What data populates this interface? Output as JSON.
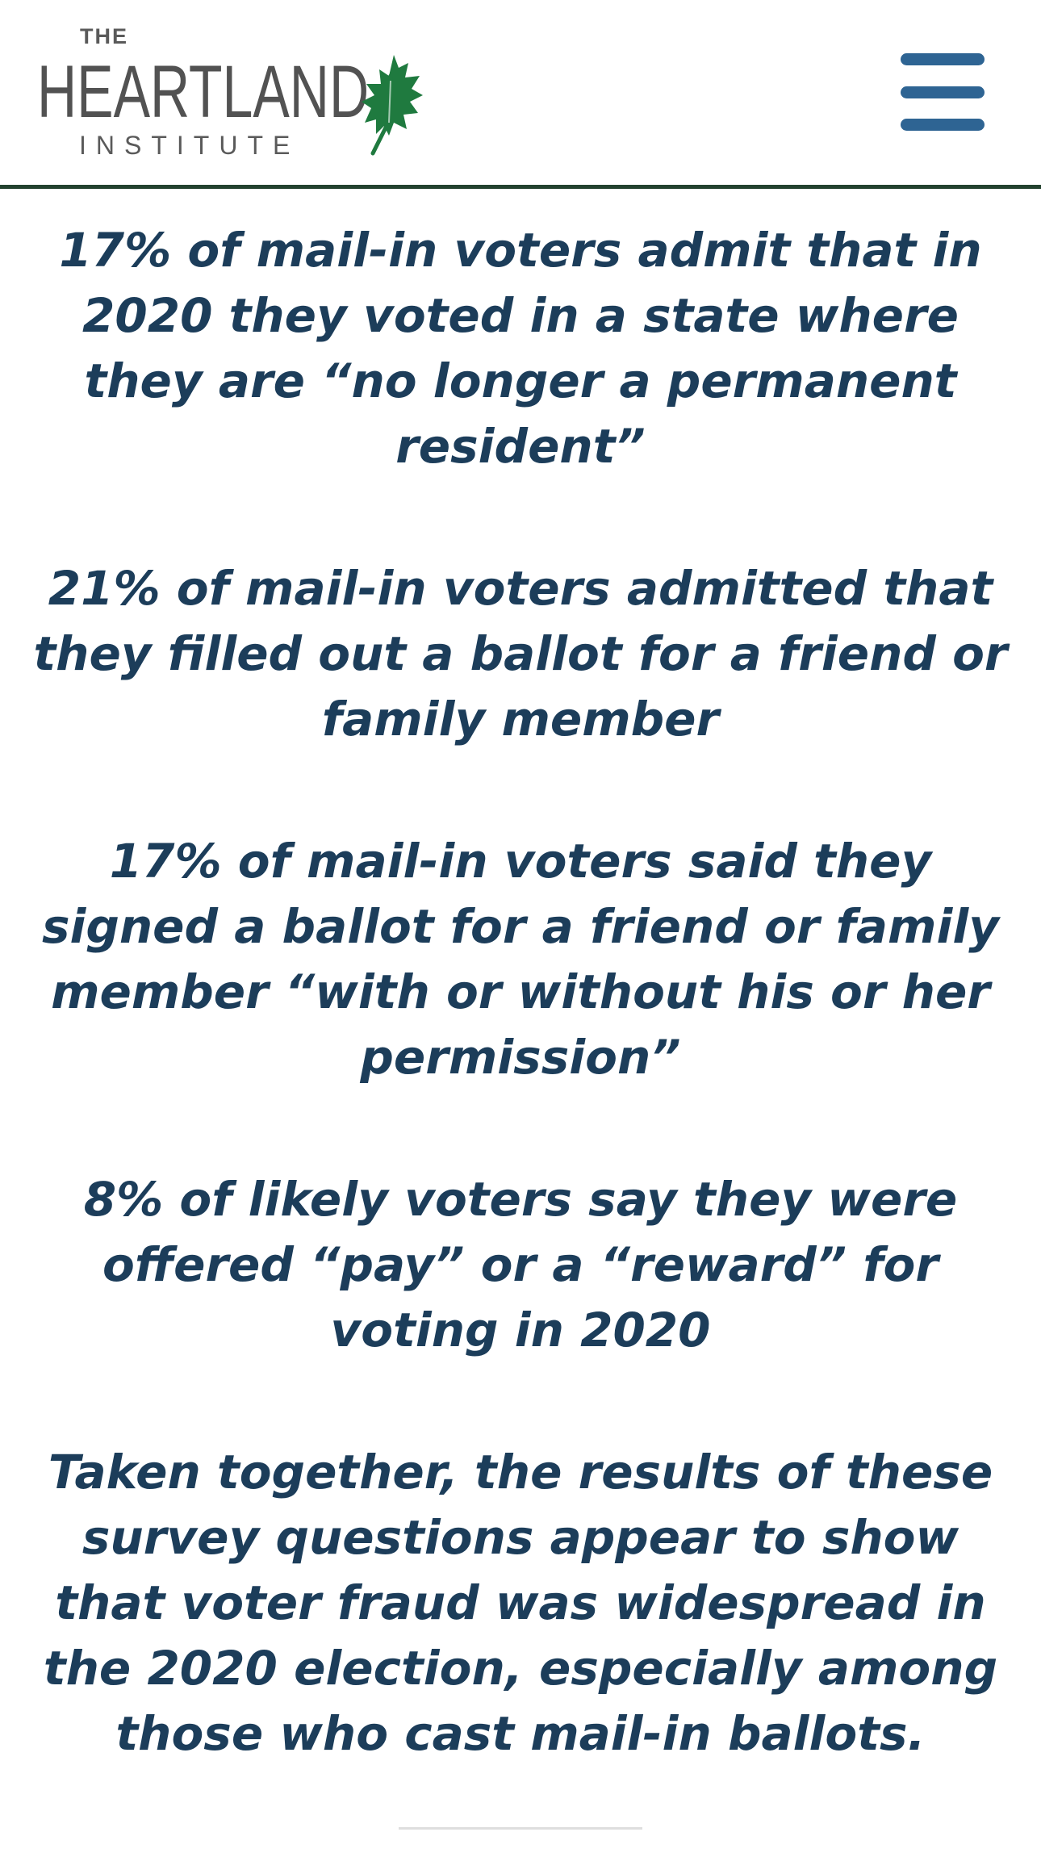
{
  "header": {
    "logo": {
      "the": "THE",
      "main": "HEARTLAND",
      "institute": "INSTITUTE"
    },
    "menu_icon": "hamburger-menu-icon",
    "colors": {
      "divider": "#23422f",
      "menu": "#2e6493",
      "leaf": "#1f7a3f"
    }
  },
  "content": {
    "text_color": "#1c3d5a",
    "statements": [
      "17% of mail-in voters admit that in 2020 they voted in a state where they are “no longer a permanent resident”",
      "21% of mail-in voters admitted that they filled out a ballot for a friend or family member",
      "17% of mail-in voters said they signed a ballot for a friend or family member “with or without his or her permission”",
      "8% of likely voters say they were offered “pay” or a “reward” for voting in 2020",
      "Taken together, the results of these survey questions appear to show that voter fraud was widespread in the 2020 election, especially among those who cast mail-in ballots."
    ]
  }
}
